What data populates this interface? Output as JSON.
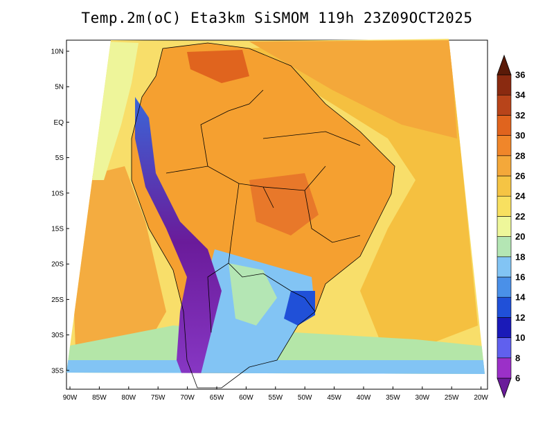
{
  "title": "Temp.2m(oC) Eta3km SiSMOM 119h 23Z09OCT2025",
  "lat_labels": [
    "10N",
    "5N",
    "EQ",
    "5S",
    "10S",
    "15S",
    "20S",
    "25S",
    "30S",
    "35S"
  ],
  "lon_labels": [
    "90W",
    "85W",
    "80W",
    "75W",
    "70W",
    "65W",
    "60W",
    "55W",
    "50W",
    "45W",
    "40W",
    "35W",
    "30W",
    "25W",
    "20W"
  ],
  "colorbar": {
    "labels": [
      "6",
      "8",
      "10",
      "12",
      "14",
      "16",
      "18",
      "20",
      "22",
      "24",
      "26",
      "28",
      "30",
      "32",
      "34",
      "36"
    ],
    "colors": [
      "#6a1b9a",
      "#9b30c8",
      "#6060ee",
      "#1a1ab8",
      "#2050d8",
      "#4a90e8",
      "#82c4f4",
      "#b4e6b4",
      "#eef79a",
      "#f8e060",
      "#f5c444",
      "#f4a83a",
      "#f0862a",
      "#e0641e",
      "#b8441a",
      "#8a2a10",
      "#5a1a08"
    ]
  }
}
